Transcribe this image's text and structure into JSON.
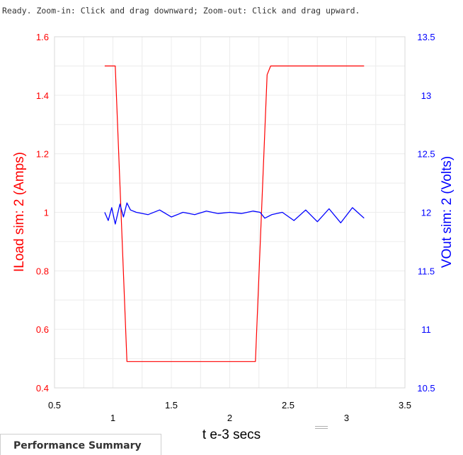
{
  "status_text": "Ready.  Zoom-in: Click and drag downward; Zoom-out: Click and drag upward.",
  "performance_tab_label": "Performance Summary",
  "chart_data": {
    "type": "line",
    "xlabel": "t e-3 secs",
    "x_ticks_top": [
      "0.5",
      "1.5",
      "2.5",
      "3.5"
    ],
    "x_ticks_bottom": [
      "1",
      "2",
      "3"
    ],
    "xlim": [
      0.5,
      3.5
    ],
    "y_left": {
      "label": "ILoad sim:  2 (Amps)",
      "ylim": [
        0.4,
        1.6
      ],
      "ticks": [
        "0.4",
        "0.6",
        "0.8",
        "1",
        "1.2",
        "1.4",
        "1.6"
      ],
      "color": "#ff0000"
    },
    "y_right": {
      "label": "VOut sim:  2 (Volts)",
      "ylim": [
        10.5,
        13.5
      ],
      "ticks": [
        "10.5",
        "11",
        "11.5",
        "12",
        "12.5",
        "13",
        "13.5"
      ],
      "color": "#0000ff"
    },
    "grid": true,
    "series": [
      {
        "name": "ILoad sim:  2 (Amps)",
        "axis": "left",
        "color": "#ff0000",
        "x": [
          0.93,
          1.0,
          1.02,
          1.12,
          1.42,
          1.52,
          2.2,
          2.22,
          2.32,
          2.35,
          2.75,
          3.15
        ],
        "y": [
          1.5,
          1.5,
          1.5,
          0.49,
          0.49,
          0.49,
          0.49,
          0.49,
          1.47,
          1.5,
          1.5,
          1.5
        ]
      },
      {
        "name": "VOut sim:  2 (Volts)",
        "axis": "right",
        "color": "#0000ff",
        "x": [
          0.93,
          0.96,
          0.99,
          1.02,
          1.06,
          1.09,
          1.12,
          1.15,
          1.2,
          1.3,
          1.4,
          1.5,
          1.6,
          1.7,
          1.8,
          1.9,
          2.0,
          2.1,
          2.2,
          2.26,
          2.3,
          2.36,
          2.45,
          2.55,
          2.65,
          2.75,
          2.85,
          2.95,
          3.05,
          3.15
        ],
        "y": [
          12.0,
          11.93,
          12.04,
          11.9,
          12.07,
          11.96,
          12.08,
          12.02,
          12.0,
          11.98,
          12.02,
          11.96,
          12.0,
          11.98,
          12.01,
          11.99,
          12.0,
          11.99,
          12.01,
          12.0,
          11.95,
          11.98,
          12.0,
          11.93,
          12.02,
          11.92,
          12.03,
          11.91,
          12.04,
          11.95
        ]
      }
    ]
  }
}
